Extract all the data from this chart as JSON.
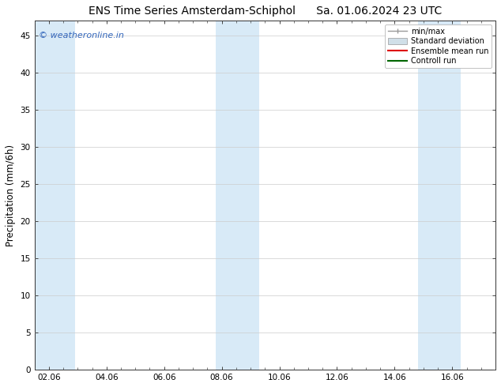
{
  "title_left": "ENS Time Series Amsterdam-Schiphol",
  "title_right": "Sa. 01.06.2024 23 UTC",
  "ylabel": "Precipitation (mm/6h)",
  "xlabel_ticks": [
    "02.06",
    "04.06",
    "06.06",
    "08.06",
    "10.06",
    "12.06",
    "14.06",
    "16.06"
  ],
  "x_tick_positions": [
    2,
    4,
    6,
    8,
    10,
    12,
    14,
    16
  ],
  "xlim": [
    1.5,
    17.5
  ],
  "ylim": [
    0,
    47
  ],
  "yticks": [
    0,
    5,
    10,
    15,
    20,
    25,
    30,
    35,
    40,
    45
  ],
  "bg_color": "#ffffff",
  "plot_bg_color": "#ffffff",
  "shaded_bands": [
    {
      "xmin": 1.5,
      "xmax": 2.9,
      "color": "#d8eaf7"
    },
    {
      "xmin": 7.8,
      "xmax": 9.3,
      "color": "#d8eaf7"
    },
    {
      "xmin": 14.8,
      "xmax": 16.3,
      "color": "#d8eaf7"
    }
  ],
  "legend_entries": [
    {
      "label": "min/max",
      "color": "#999999",
      "type": "hline"
    },
    {
      "label": "Standard deviation",
      "color": "#d0dfe8",
      "type": "rect"
    },
    {
      "label": "Ensemble mean run",
      "color": "#dd0000",
      "type": "line"
    },
    {
      "label": "Controll run",
      "color": "#006600",
      "type": "line"
    }
  ],
  "watermark_text": "© weatheronline.in",
  "watermark_color": "#3366bb",
  "watermark_fontsize": 8,
  "title_fontsize": 10,
  "tick_fontsize": 7.5,
  "ylabel_fontsize": 8.5,
  "legend_fontsize": 7,
  "grid_color": "#cccccc",
  "axis_color": "#333333",
  "tick_color": "#444444"
}
